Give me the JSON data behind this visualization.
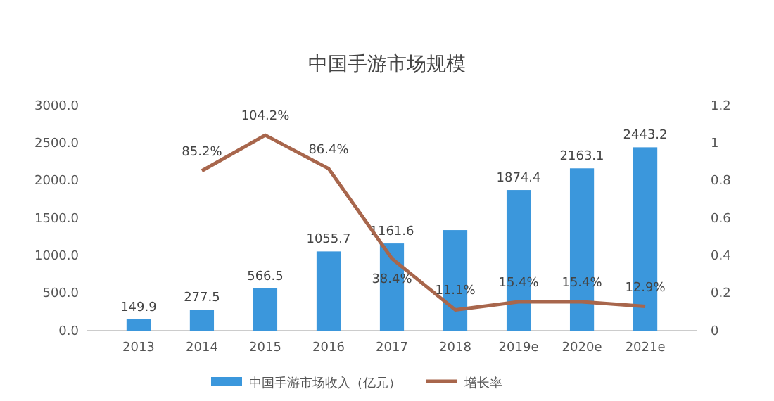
{
  "chart_data": {
    "type": "bar",
    "title": "中国手游市场规模",
    "categories": [
      "2013",
      "2014",
      "2015",
      "2016",
      "2017",
      "2018",
      "2019e",
      "2020e",
      "2021e"
    ],
    "series": [
      {
        "name": "中国手游市场收入（亿元）",
        "color": "#3b97dc",
        "values": [
          149.9,
          277.5,
          566.5,
          1055.7,
          1161.6,
          1340,
          1874.4,
          2163.1,
          2443.2
        ],
        "value_labels": [
          "149.9",
          "277.5",
          "566.5",
          "1055.7",
          "1161.6",
          null,
          "1874.4",
          "2163.1",
          "2443.2"
        ]
      },
      {
        "name": "增长率",
        "type": "line",
        "axis": "y2",
        "color": "#a8664c",
        "values": [
          null,
          0.852,
          1.042,
          0.864,
          0.384,
          0.111,
          0.154,
          0.154,
          0.129
        ],
        "value_labels": [
          null,
          "85.2%",
          "104.2%",
          "86.4%",
          "38.4%",
          "11.1%",
          "15.4%",
          "15.4%",
          "12.9%"
        ]
      }
    ],
    "ylim": [
      0,
      3000
    ],
    "yticks": [
      {
        "value": 0,
        "label": "0.0"
      },
      {
        "value": 500,
        "label": "500.0"
      },
      {
        "value": 1000,
        "label": "1000.0"
      },
      {
        "value": 1500,
        "label": "1500.0"
      },
      {
        "value": 2000,
        "label": "2000.0"
      },
      {
        "value": 2500,
        "label": "2500.0"
      },
      {
        "value": 3000,
        "label": "3000.0"
      }
    ],
    "y2lim": [
      0,
      1.2
    ],
    "y2ticks": [
      0,
      0.2,
      0.4,
      0.6,
      0.8,
      1,
      1.2
    ],
    "grid": false,
    "legend": "bottom",
    "marker": "none"
  }
}
